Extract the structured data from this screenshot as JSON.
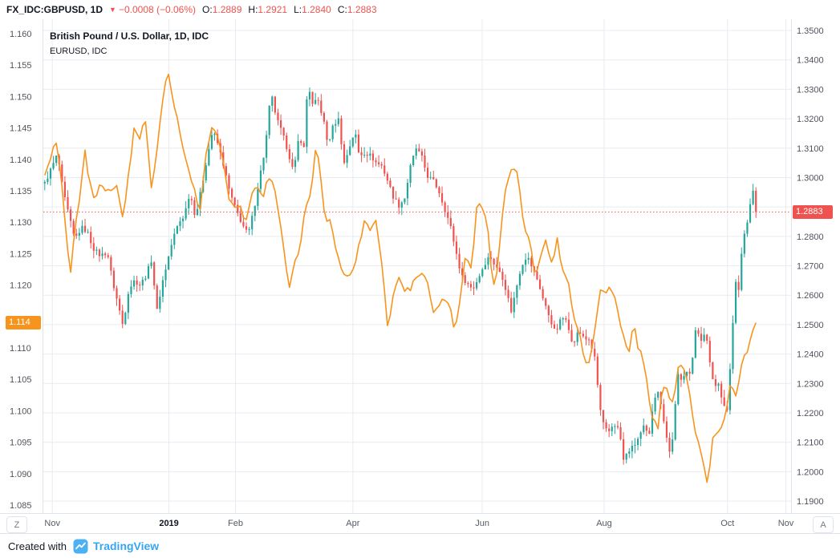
{
  "topbar": {
    "symbol": "FX_IDC:GBPUSD, 1D",
    "change_arrow": "▼",
    "change": "−0.0008 (−0.06%)",
    "o_label": "O:",
    "o": "1.2889",
    "h_label": "H:",
    "h": "1.2921",
    "l_label": "L:",
    "l": "1.2840",
    "c_label": "C:",
    "c": "1.2883"
  },
  "legend": {
    "line1": "British Pound / U.S. Dollar, 1D, IDC",
    "line2": "EURUSD, IDC"
  },
  "price_labels": {
    "gbp_last": "1.2883",
    "eur_last": "1.114"
  },
  "buttons": {
    "timezone": "Z",
    "autoscale": "A"
  },
  "footer": {
    "created_with": "Created with",
    "brand": "TradingView"
  },
  "colors": {
    "up": "#26a69a",
    "down": "#ef5350",
    "eur_line": "#f7941e",
    "grid": "#e8ebf1",
    "axis_text": "#50535e",
    "last_price": "#ef5350",
    "eur_label_bg": "#f7941e",
    "border": "#e0e3eb",
    "brand_blue": "#37a6ef"
  },
  "chart_data": {
    "type": "candlestick+line",
    "title": "British Pound / U.S. Dollar, 1D, IDC",
    "overlay": "EURUSD, IDC",
    "bars": 248,
    "gbp_last": 1.2883,
    "eur_last": 1.114,
    "right_axis": {
      "series": "GBPUSD",
      "min": 1.19,
      "max": 1.35,
      "step": 0.01,
      "decimals": 4
    },
    "left_axis": {
      "series": "EURUSD",
      "min": 1.085,
      "max": 1.16,
      "step": 0.005,
      "decimals": 3
    },
    "x_labels": [
      {
        "label": "Nov",
        "t": 0.012
      },
      {
        "label": "2019",
        "t": 0.168,
        "bold": true
      },
      {
        "label": "Feb",
        "t": 0.257
      },
      {
        "label": "Apr",
        "t": 0.414
      },
      {
        "label": "Jun",
        "t": 0.587
      },
      {
        "label": "Aug",
        "t": 0.75
      },
      {
        "label": "Oct",
        "t": 0.915
      },
      {
        "label": "Nov",
        "t": 0.993
      }
    ],
    "gbpusd_close_anchors": [
      [
        0.0,
        1.298
      ],
      [
        0.008,
        1.3025
      ],
      [
        0.018,
        1.308
      ],
      [
        0.026,
        1.295
      ],
      [
        0.034,
        1.287
      ],
      [
        0.042,
        1.279
      ],
      [
        0.052,
        1.283
      ],
      [
        0.06,
        1.2815
      ],
      [
        0.068,
        1.276
      ],
      [
        0.078,
        1.2735
      ],
      [
        0.088,
        1.2745
      ],
      [
        0.096,
        1.264
      ],
      [
        0.104,
        1.256
      ],
      [
        0.11,
        1.2495
      ],
      [
        0.118,
        1.262
      ],
      [
        0.126,
        1.265
      ],
      [
        0.134,
        1.2635
      ],
      [
        0.142,
        1.2665
      ],
      [
        0.15,
        1.272
      ],
      [
        0.158,
        1.2545
      ],
      [
        0.164,
        1.263
      ],
      [
        0.172,
        1.271
      ],
      [
        0.18,
        1.279
      ],
      [
        0.188,
        1.2845
      ],
      [
        0.196,
        1.287
      ],
      [
        0.204,
        1.295
      ],
      [
        0.212,
        1.2865
      ],
      [
        0.22,
        1.296
      ],
      [
        0.228,
        1.3065
      ],
      [
        0.236,
        1.316
      ],
      [
        0.244,
        1.311
      ],
      [
        0.252,
        1.3035
      ],
      [
        0.26,
        1.295
      ],
      [
        0.268,
        1.2895
      ],
      [
        0.278,
        1.284
      ],
      [
        0.286,
        1.2805
      ],
      [
        0.294,
        1.289
      ],
      [
        0.302,
        1.3
      ],
      [
        0.31,
        1.31
      ],
      [
        0.318,
        1.329
      ],
      [
        0.326,
        1.32
      ],
      [
        0.334,
        1.315
      ],
      [
        0.342,
        1.309
      ],
      [
        0.35,
        1.3015
      ],
      [
        0.358,
        1.315
      ],
      [
        0.364,
        1.3085
      ],
      [
        0.37,
        1.333
      ],
      [
        0.376,
        1.3245
      ],
      [
        0.384,
        1.3265
      ],
      [
        0.392,
        1.3195
      ],
      [
        0.398,
        1.311
      ],
      [
        0.406,
        1.318
      ],
      [
        0.414,
        1.32
      ],
      [
        0.42,
        1.304
      ],
      [
        0.428,
        1.31
      ],
      [
        0.436,
        1.316
      ],
      [
        0.442,
        1.3075
      ],
      [
        0.45,
        1.3085
      ],
      [
        0.458,
        1.3075
      ],
      [
        0.466,
        1.305
      ],
      [
        0.474,
        1.304
      ],
      [
        0.482,
        1.299
      ],
      [
        0.49,
        1.2935
      ],
      [
        0.498,
        1.2905
      ],
      [
        0.506,
        1.293
      ],
      [
        0.514,
        1.3035
      ],
      [
        0.522,
        1.31
      ],
      [
        0.53,
        1.307
      ],
      [
        0.538,
        1.3005
      ],
      [
        0.546,
        1.299
      ],
      [
        0.554,
        1.2955
      ],
      [
        0.562,
        1.2895
      ],
      [
        0.57,
        1.284
      ],
      [
        0.578,
        1.275
      ],
      [
        0.586,
        1.2665
      ],
      [
        0.594,
        1.264
      ],
      [
        0.602,
        1.262
      ],
      [
        0.61,
        1.266
      ],
      [
        0.618,
        1.2705
      ],
      [
        0.626,
        1.2735
      ],
      [
        0.634,
        1.2695
      ],
      [
        0.642,
        1.2675
      ],
      [
        0.65,
        1.2605
      ],
      [
        0.656,
        1.2545
      ],
      [
        0.664,
        1.2635
      ],
      [
        0.67,
        1.27
      ],
      [
        0.678,
        1.2735
      ],
      [
        0.686,
        1.269
      ],
      [
        0.694,
        1.2645
      ],
      [
        0.702,
        1.2575
      ],
      [
        0.71,
        1.2525
      ],
      [
        0.718,
        1.247
      ],
      [
        0.726,
        1.252
      ],
      [
        0.734,
        1.2525
      ],
      [
        0.742,
        1.2425
      ],
      [
        0.75,
        1.2475
      ],
      [
        0.758,
        1.246
      ],
      [
        0.766,
        1.244
      ],
      [
        0.774,
        1.2385
      ],
      [
        0.78,
        1.222
      ],
      [
        0.786,
        1.2155
      ],
      [
        0.792,
        1.213
      ],
      [
        0.8,
        1.2165
      ],
      [
        0.808,
        1.214
      ],
      [
        0.814,
        1.2035
      ],
      [
        0.82,
        1.207
      ],
      [
        0.828,
        1.2085
      ],
      [
        0.836,
        1.212
      ],
      [
        0.842,
        1.215
      ],
      [
        0.85,
        1.212
      ],
      [
        0.856,
        1.2245
      ],
      [
        0.862,
        1.228
      ],
      [
        0.868,
        1.2205
      ],
      [
        0.872,
        1.216
      ],
      [
        0.878,
        1.2065
      ],
      [
        0.882,
        1.209
      ],
      [
        0.886,
        1.2215
      ],
      [
        0.89,
        1.233
      ],
      [
        0.896,
        1.23
      ],
      [
        0.902,
        1.235
      ],
      [
        0.906,
        1.233
      ],
      [
        0.912,
        1.24
      ],
      [
        0.916,
        1.25
      ],
      [
        0.922,
        1.244
      ],
      [
        0.926,
        1.248
      ],
      [
        0.932,
        1.2435
      ],
      [
        0.936,
        1.235
      ],
      [
        0.942,
        1.229
      ],
      [
        0.948,
        1.23
      ],
      [
        0.954,
        1.223
      ],
      [
        0.96,
        1.221
      ],
      [
        0.966,
        1.244
      ],
      [
        0.971,
        1.2645
      ],
      [
        0.976,
        1.2615
      ],
      [
        0.981,
        1.278
      ],
      [
        0.986,
        1.283
      ],
      [
        0.991,
        1.289
      ],
      [
        0.996,
        1.296
      ],
      [
        1.0,
        1.2883
      ]
    ],
    "eurusd_anchors": [
      [
        0.0,
        1.137
      ],
      [
        0.008,
        1.14
      ],
      [
        0.016,
        1.143
      ],
      [
        0.024,
        1.1365
      ],
      [
        0.03,
        1.128
      ],
      [
        0.036,
        1.122
      ],
      [
        0.044,
        1.13
      ],
      [
        0.05,
        1.1345
      ],
      [
        0.056,
        1.1415
      ],
      [
        0.062,
        1.137
      ],
      [
        0.07,
        1.133
      ],
      [
        0.078,
        1.1365
      ],
      [
        0.086,
        1.1345
      ],
      [
        0.094,
        1.1355
      ],
      [
        0.102,
        1.136
      ],
      [
        0.11,
        1.1305
      ],
      [
        0.118,
        1.138
      ],
      [
        0.126,
        1.145
      ],
      [
        0.134,
        1.1435
      ],
      [
        0.142,
        1.1465
      ],
      [
        0.15,
        1.135
      ],
      [
        0.156,
        1.14
      ],
      [
        0.164,
        1.1475
      ],
      [
        0.172,
        1.1545
      ],
      [
        0.178,
        1.1505
      ],
      [
        0.186,
        1.147
      ],
      [
        0.194,
        1.1415
      ],
      [
        0.202,
        1.138
      ],
      [
        0.21,
        1.136
      ],
      [
        0.218,
        1.131
      ],
      [
        0.226,
        1.141
      ],
      [
        0.234,
        1.1448
      ],
      [
        0.242,
        1.144
      ],
      [
        0.25,
        1.1406
      ],
      [
        0.258,
        1.134
      ],
      [
        0.266,
        1.1325
      ],
      [
        0.274,
        1.133
      ],
      [
        0.282,
        1.1296
      ],
      [
        0.29,
        1.134
      ],
      [
        0.298,
        1.136
      ],
      [
        0.306,
        1.1335
      ],
      [
        0.314,
        1.137
      ],
      [
        0.322,
        1.1365
      ],
      [
        0.33,
        1.1305
      ],
      [
        0.338,
        1.124
      ],
      [
        0.344,
        1.1195
      ],
      [
        0.35,
        1.1235
      ],
      [
        0.358,
        1.1255
      ],
      [
        0.366,
        1.1325
      ],
      [
        0.374,
        1.134
      ],
      [
        0.382,
        1.1435
      ],
      [
        0.388,
        1.137
      ],
      [
        0.394,
        1.1302
      ],
      [
        0.402,
        1.131
      ],
      [
        0.41,
        1.125
      ],
      [
        0.418,
        1.1223
      ],
      [
        0.426,
        1.1215
      ],
      [
        0.434,
        1.1225
      ],
      [
        0.442,
        1.1265
      ],
      [
        0.45,
        1.13
      ],
      [
        0.458,
        1.129
      ],
      [
        0.466,
        1.1305
      ],
      [
        0.474,
        1.1235
      ],
      [
        0.482,
        1.1134
      ],
      [
        0.49,
        1.118
      ],
      [
        0.498,
        1.1215
      ],
      [
        0.506,
        1.119
      ],
      [
        0.514,
        1.1195
      ],
      [
        0.522,
        1.1215
      ],
      [
        0.53,
        1.1223
      ],
      [
        0.538,
        1.1205
      ],
      [
        0.546,
        1.1155
      ],
      [
        0.554,
        1.1165
      ],
      [
        0.562,
        1.1182
      ],
      [
        0.57,
        1.1164
      ],
      [
        0.576,
        1.113
      ],
      [
        0.584,
        1.117
      ],
      [
        0.592,
        1.125
      ],
      [
        0.6,
        1.1222
      ],
      [
        0.608,
        1.1335
      ],
      [
        0.616,
        1.1325
      ],
      [
        0.624,
        1.1277
      ],
      [
        0.63,
        1.1195
      ],
      [
        0.636,
        1.1225
      ],
      [
        0.642,
        1.1295
      ],
      [
        0.65,
        1.1366
      ],
      [
        0.658,
        1.1385
      ],
      [
        0.666,
        1.1373
      ],
      [
        0.674,
        1.1285
      ],
      [
        0.682,
        1.128
      ],
      [
        0.69,
        1.121
      ],
      [
        0.698,
        1.1253
      ],
      [
        0.706,
        1.127
      ],
      [
        0.714,
        1.1224
      ],
      [
        0.72,
        1.1276
      ],
      [
        0.728,
        1.1221
      ],
      [
        0.736,
        1.121
      ],
      [
        0.744,
        1.1145
      ],
      [
        0.752,
        1.1128
      ],
      [
        0.76,
        1.1076
      ],
      [
        0.768,
        1.1085
      ],
      [
        0.776,
        1.115
      ],
      [
        0.782,
        1.12
      ],
      [
        0.79,
        1.1185
      ],
      [
        0.796,
        1.1199
      ],
      [
        0.804,
        1.117
      ],
      [
        0.81,
        1.1138
      ],
      [
        0.816,
        1.111
      ],
      [
        0.822,
        1.1095
      ],
      [
        0.828,
        1.1145
      ],
      [
        0.834,
        1.11
      ],
      [
        0.84,
        1.1085
      ],
      [
        0.846,
        1.1057
      ],
      [
        0.852,
        1.099
      ],
      [
        0.862,
        1.0972
      ],
      [
        0.868,
        1.1035
      ],
      [
        0.876,
        1.103
      ],
      [
        0.884,
        1.1005
      ],
      [
        0.89,
        1.1063
      ],
      [
        0.896,
        1.1074
      ],
      [
        0.902,
        1.106
      ],
      [
        0.908,
        1.1017
      ],
      [
        0.916,
        1.096
      ],
      [
        0.924,
        1.093
      ],
      [
        0.932,
        1.088
      ],
      [
        0.94,
        1.096
      ],
      [
        0.948,
        1.0968
      ],
      [
        0.956,
        1.099
      ],
      [
        0.964,
        1.104
      ],
      [
        0.972,
        1.1028
      ],
      [
        0.98,
        1.1073
      ],
      [
        0.988,
        1.1095
      ],
      [
        0.994,
        1.1125
      ],
      [
        1.0,
        1.114
      ]
    ]
  }
}
